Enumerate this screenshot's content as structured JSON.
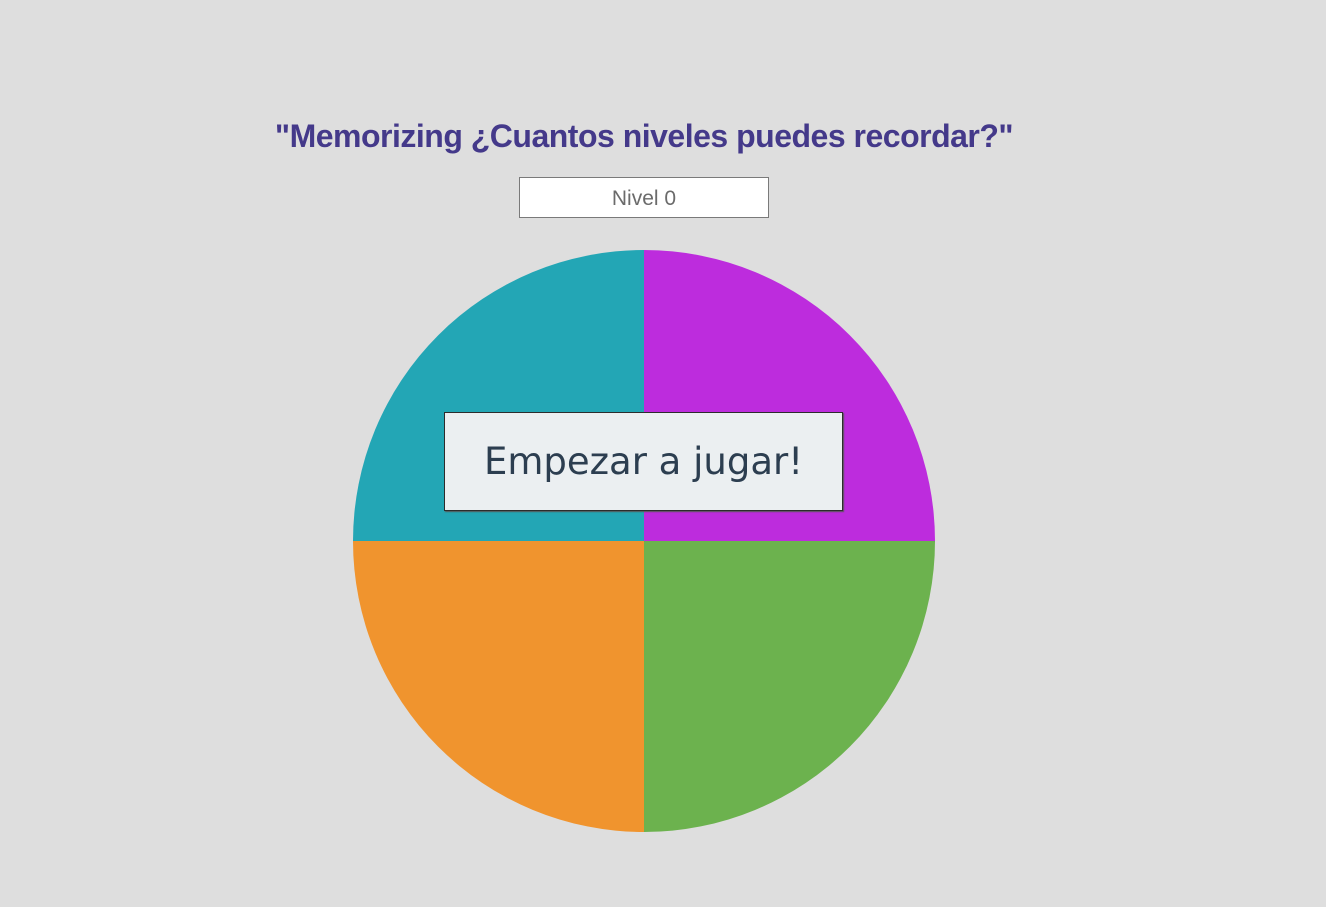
{
  "game": {
    "title": "\"Memorizing ¿Cuantos niveles puedes recordar?\"",
    "level_display": "Nivel 0",
    "start_button_label": "Empezar a jugar!"
  },
  "colors": {
    "background": "#dedede",
    "title": "#44398a",
    "quadrant_top_left": "#23a6b5",
    "quadrant_top_right": "#bd2cdd",
    "quadrant_bottom_left": "#f0942e",
    "quadrant_bottom_right": "#6cb24e"
  }
}
